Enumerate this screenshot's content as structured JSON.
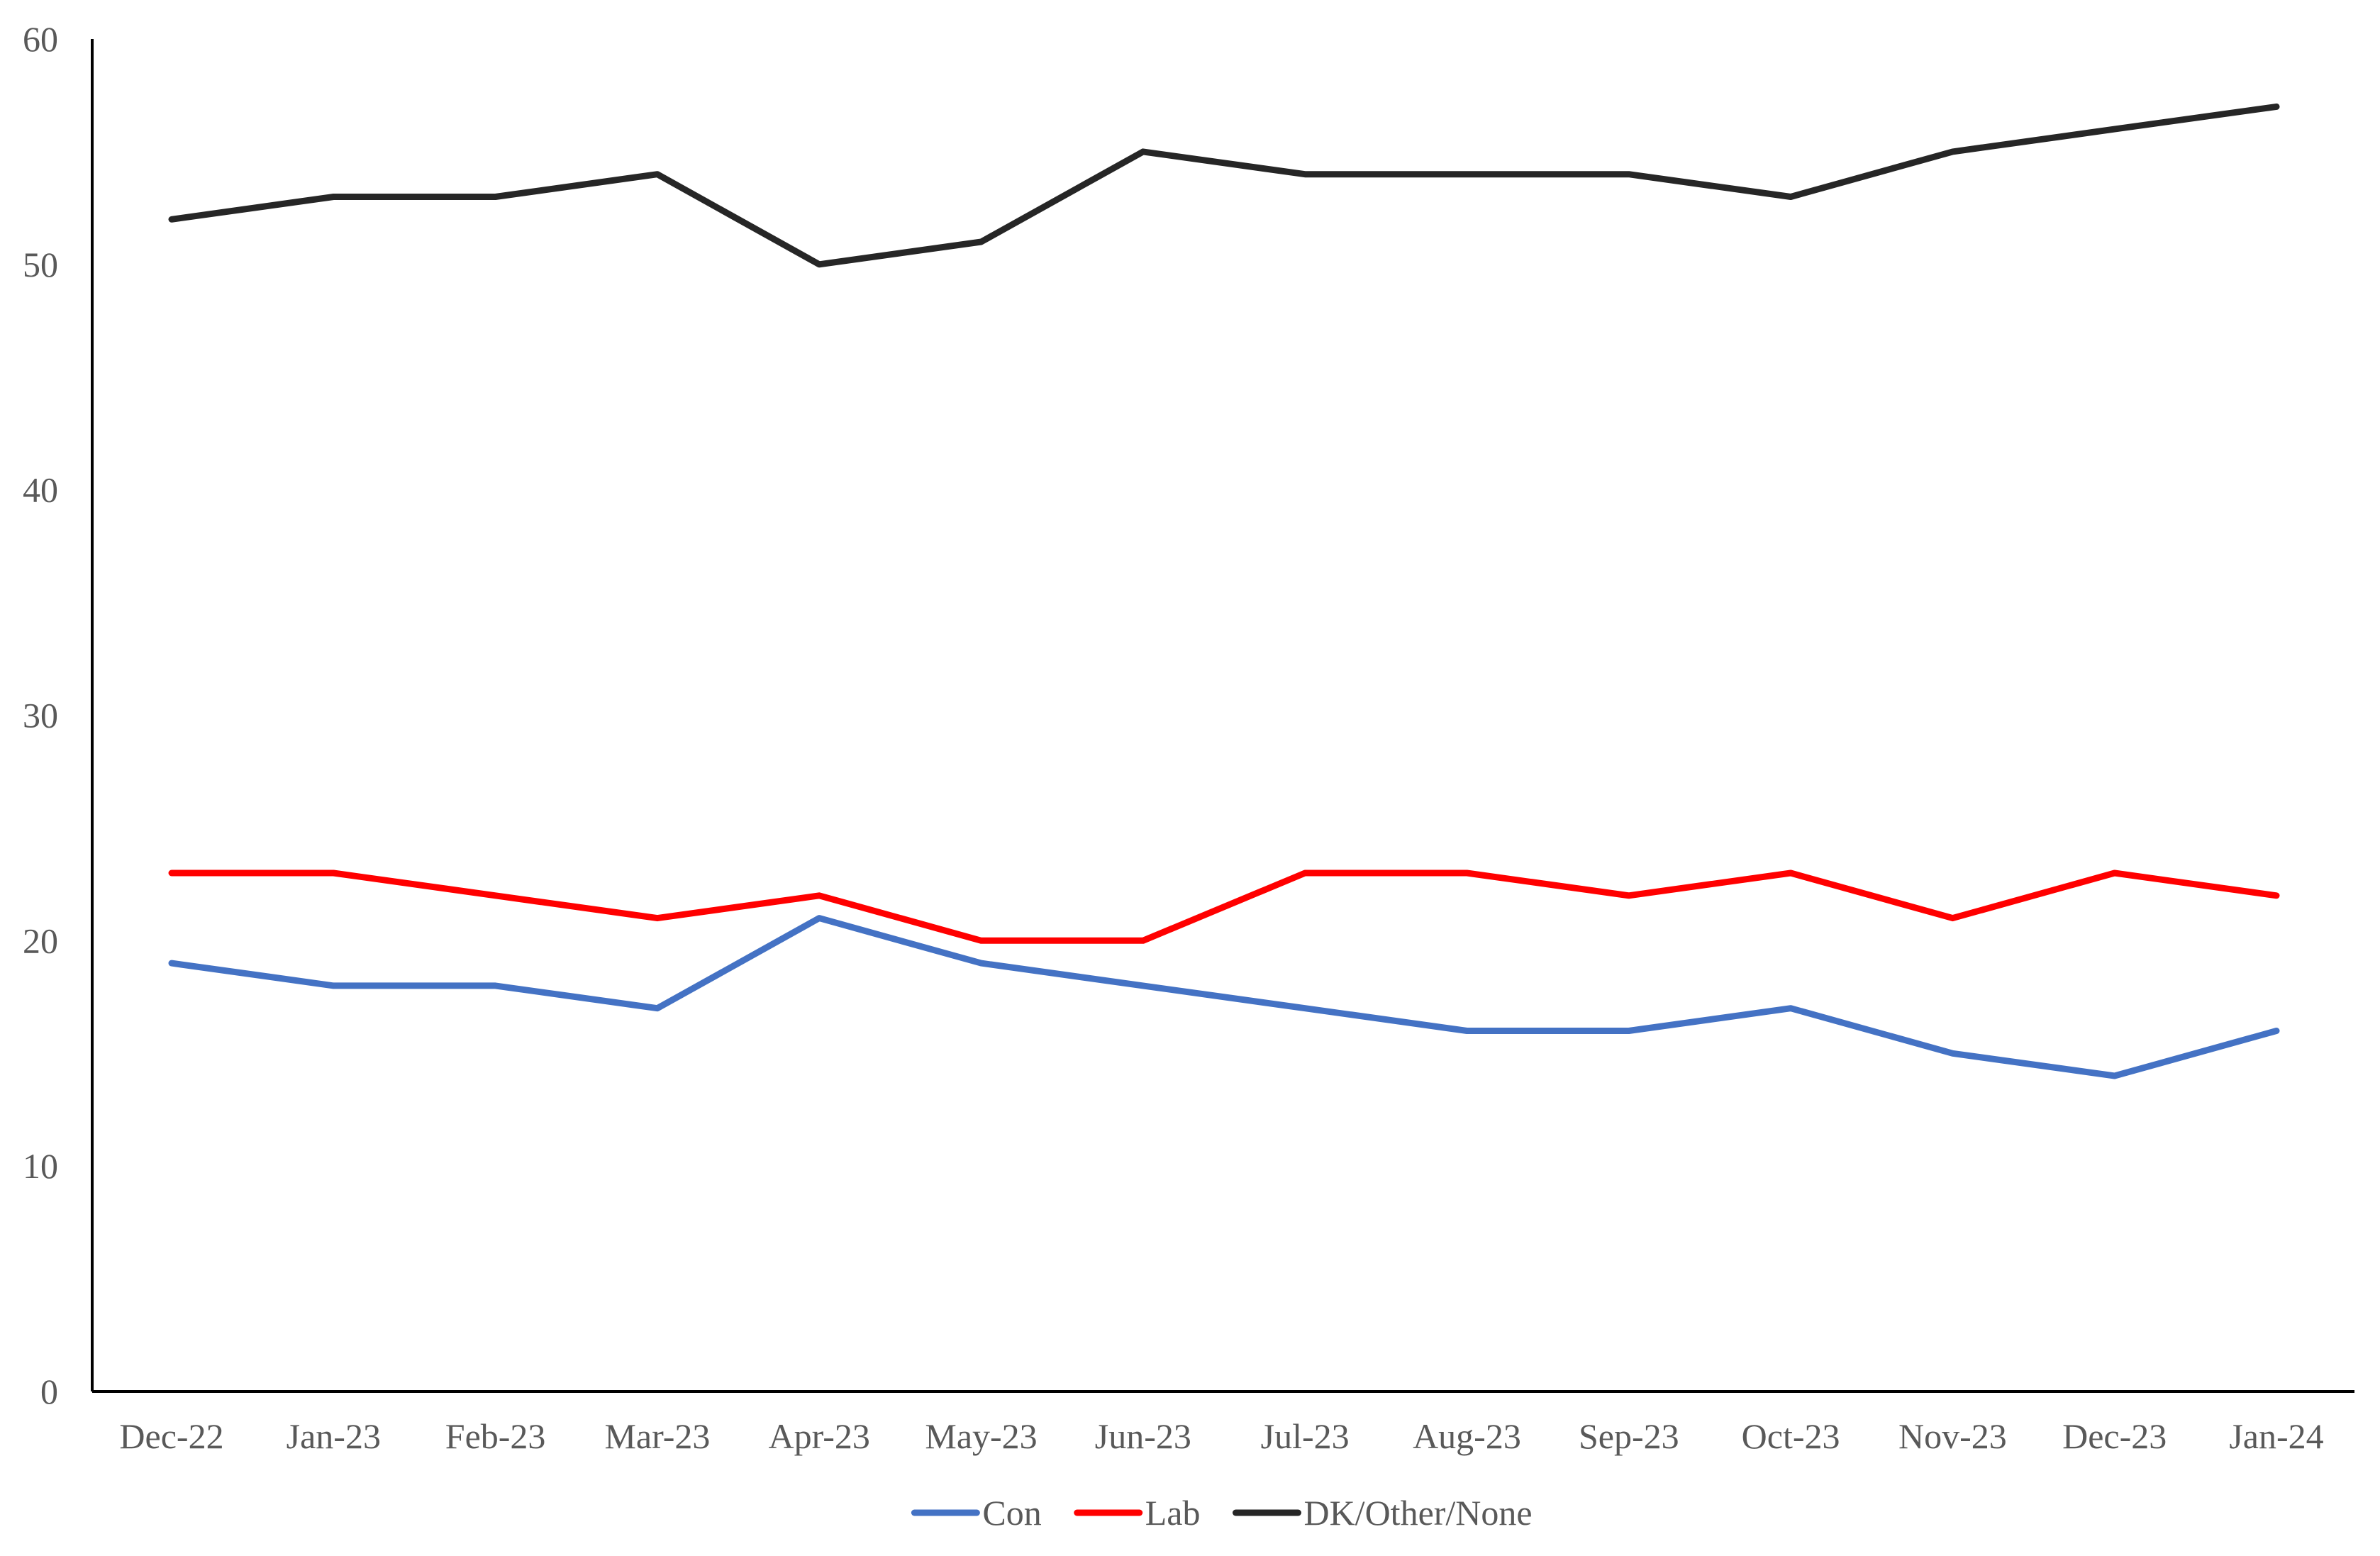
{
  "chart_data": {
    "type": "line",
    "title": "",
    "xlabel": "",
    "ylabel": "",
    "categories": [
      "Dec-22",
      "Jan-23",
      "Feb-23",
      "Mar-23",
      "Apr-23",
      "May-23",
      "Jun-23",
      "Jul-23",
      "Aug-23",
      "Sep-23",
      "Oct-23",
      "Nov-23",
      "Dec-23",
      "Jan-24"
    ],
    "ylim": [
      0,
      60
    ],
    "yticks": [
      0,
      10,
      20,
      30,
      40,
      50,
      60
    ],
    "grid": false,
    "legend_position": "bottom",
    "series": [
      {
        "name": "Con",
        "color": "#4472C4",
        "values": [
          19,
          18,
          18,
          17,
          21,
          19,
          18,
          17,
          16,
          16,
          17,
          15,
          14,
          16
        ]
      },
      {
        "name": "Lab",
        "color": "#FF0000",
        "values": [
          23,
          23,
          22,
          21,
          22,
          20,
          20,
          23,
          23,
          22,
          23,
          21,
          23,
          22
        ]
      },
      {
        "name": "DK/Other/None",
        "color": "#262626",
        "values": [
          52,
          53,
          53,
          54,
          50,
          51,
          55,
          54,
          54,
          54,
          53,
          55,
          56,
          57
        ]
      }
    ]
  }
}
